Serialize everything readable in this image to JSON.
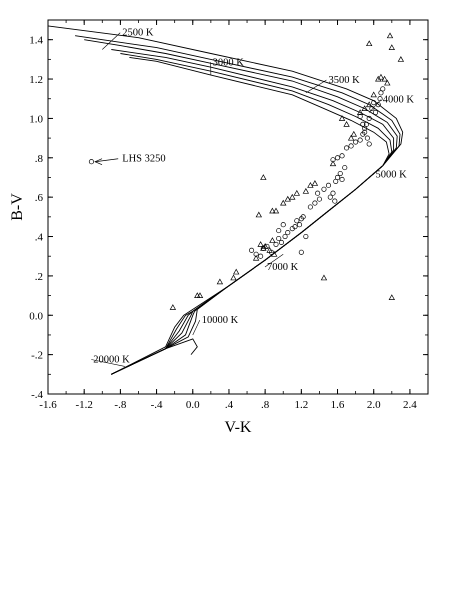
{
  "chart_data": {
    "type": "scatter",
    "title": "",
    "xlabel": "V-K",
    "ylabel": "B-V",
    "xlim": [
      -1.6,
      2.6
    ],
    "ylim": [
      -0.4,
      1.5
    ],
    "grid": false,
    "legend": "none",
    "x_ticks": [
      -1.6,
      -1.2,
      -0.8,
      -0.4,
      0.0,
      0.4,
      0.8,
      1.2,
      1.6,
      2.0,
      2.4
    ],
    "x_tick_labels": [
      "-1.6",
      "-1.2",
      "-.8",
      "-.4",
      "0.0",
      ".4",
      ".8",
      "1.2",
      "1.6",
      "2.0",
      "2.4"
    ],
    "y_ticks": [
      -0.4,
      -0.2,
      0.0,
      0.2,
      0.4,
      0.6,
      0.8,
      1.0,
      1.2,
      1.4
    ],
    "y_tick_labels": [
      "-.4",
      "-.2",
      "0.0",
      ".2",
      ".4",
      ".6",
      ".8",
      "1.0",
      "1.2",
      "1.4"
    ],
    "model_curves": [
      {
        "points": [
          [
            -0.9,
            -0.3
          ],
          [
            -0.3,
            -0.16
          ],
          [
            -0.2,
            -0.06
          ],
          [
            -0.1,
            0.0
          ],
          [
            0.0,
            0.03
          ],
          [
            0.4,
            0.15
          ],
          [
            0.8,
            0.28
          ],
          [
            1.2,
            0.42
          ],
          [
            1.5,
            0.53
          ],
          [
            1.8,
            0.64
          ],
          [
            2.1,
            0.76
          ],
          [
            2.3,
            0.87
          ],
          [
            2.32,
            0.93
          ],
          [
            2.25,
            1.0
          ],
          [
            2.0,
            1.09
          ],
          [
            1.7,
            1.15
          ],
          [
            1.1,
            1.24
          ],
          [
            0.2,
            1.33
          ],
          [
            -0.6,
            1.41
          ],
          [
            -1.6,
            1.47
          ]
        ]
      },
      {
        "points": [
          [
            -0.9,
            -0.3
          ],
          [
            -0.3,
            -0.17
          ],
          [
            -0.18,
            -0.07
          ],
          [
            -0.08,
            0.0
          ],
          [
            0.0,
            0.02
          ],
          [
            0.4,
            0.15
          ],
          [
            0.8,
            0.28
          ],
          [
            1.2,
            0.42
          ],
          [
            1.5,
            0.53
          ],
          [
            1.8,
            0.64
          ],
          [
            2.1,
            0.76
          ],
          [
            2.28,
            0.86
          ],
          [
            2.29,
            0.92
          ],
          [
            2.2,
            0.99
          ],
          [
            1.95,
            1.07
          ],
          [
            1.65,
            1.13
          ],
          [
            1.1,
            1.21
          ],
          [
            0.2,
            1.3
          ],
          [
            -0.4,
            1.36
          ],
          [
            -1.0,
            1.4
          ],
          [
            -1.3,
            1.42
          ]
        ]
      },
      {
        "points": [
          [
            -0.9,
            -0.3
          ],
          [
            -0.3,
            -0.17
          ],
          [
            -0.15,
            -0.08
          ],
          [
            -0.05,
            0.0
          ],
          [
            0.0,
            0.02
          ],
          [
            0.4,
            0.15
          ],
          [
            0.8,
            0.28
          ],
          [
            1.2,
            0.42
          ],
          [
            1.5,
            0.53
          ],
          [
            1.8,
            0.64
          ],
          [
            2.1,
            0.76
          ],
          [
            2.25,
            0.85
          ],
          [
            2.26,
            0.91
          ],
          [
            2.15,
            0.98
          ],
          [
            1.9,
            1.05
          ],
          [
            1.6,
            1.11
          ],
          [
            1.1,
            1.19
          ],
          [
            0.2,
            1.28
          ],
          [
            -0.3,
            1.33
          ],
          [
            -0.8,
            1.37
          ],
          [
            -1.2,
            1.4
          ]
        ]
      },
      {
        "points": [
          [
            -0.9,
            -0.3
          ],
          [
            -0.3,
            -0.17
          ],
          [
            -0.12,
            -0.09
          ],
          [
            -0.02,
            0.0
          ],
          [
            0.0,
            0.02
          ],
          [
            0.4,
            0.15
          ],
          [
            0.8,
            0.28
          ],
          [
            1.2,
            0.42
          ],
          [
            1.5,
            0.53
          ],
          [
            1.8,
            0.64
          ],
          [
            2.1,
            0.76
          ],
          [
            2.22,
            0.84
          ],
          [
            2.22,
            0.9
          ],
          [
            2.1,
            0.97
          ],
          [
            1.85,
            1.03
          ],
          [
            1.55,
            1.09
          ],
          [
            1.1,
            1.16
          ],
          [
            0.2,
            1.26
          ],
          [
            -0.3,
            1.31
          ],
          [
            -0.9,
            1.35
          ]
        ]
      },
      {
        "points": [
          [
            -0.9,
            -0.3
          ],
          [
            -0.3,
            -0.17
          ],
          [
            -0.08,
            -0.1
          ],
          [
            0.0,
            0.0
          ],
          [
            0.02,
            0.02
          ],
          [
            0.4,
            0.15
          ],
          [
            0.8,
            0.28
          ],
          [
            1.2,
            0.42
          ],
          [
            1.5,
            0.53
          ],
          [
            1.8,
            0.64
          ],
          [
            2.1,
            0.76
          ],
          [
            2.2,
            0.83
          ],
          [
            2.18,
            0.89
          ],
          [
            2.05,
            0.95
          ],
          [
            1.8,
            1.01
          ],
          [
            1.5,
            1.07
          ],
          [
            1.1,
            1.14
          ],
          [
            0.2,
            1.24
          ],
          [
            -0.4,
            1.3
          ],
          [
            -0.8,
            1.33
          ]
        ]
      },
      {
        "points": [
          [
            -0.9,
            -0.3
          ],
          [
            -0.3,
            -0.17
          ],
          [
            -0.05,
            -0.11
          ],
          [
            0.03,
            -0.03
          ],
          [
            0.05,
            0.03
          ],
          [
            0.4,
            0.15
          ],
          [
            0.8,
            0.28
          ],
          [
            1.2,
            0.42
          ],
          [
            1.5,
            0.53
          ],
          [
            1.8,
            0.64
          ],
          [
            2.1,
            0.76
          ],
          [
            2.17,
            0.82
          ],
          [
            2.14,
            0.88
          ],
          [
            2.0,
            0.93
          ],
          [
            1.75,
            0.99
          ],
          [
            1.45,
            1.05
          ],
          [
            1.1,
            1.12
          ],
          [
            0.2,
            1.22
          ],
          [
            -0.4,
            1.29
          ],
          [
            -0.7,
            1.31
          ]
        ]
      },
      {
        "points": [
          [
            -0.9,
            -0.3
          ],
          [
            -0.3,
            -0.17
          ],
          [
            0.0,
            -0.12
          ],
          [
            0.05,
            -0.16
          ],
          [
            -0.02,
            -0.2
          ]
        ]
      }
    ],
    "circles": [
      [
        0.65,
        0.33
      ],
      [
        0.7,
        0.31
      ],
      [
        0.75,
        0.3
      ],
      [
        0.78,
        0.34
      ],
      [
        0.82,
        0.35
      ],
      [
        0.87,
        0.32
      ],
      [
        0.92,
        0.36
      ],
      [
        0.95,
        0.39
      ],
      [
        0.98,
        0.37
      ],
      [
        1.02,
        0.4
      ],
      [
        1.05,
        0.42
      ],
      [
        1.1,
        0.44
      ],
      [
        1.13,
        0.45
      ],
      [
        1.15,
        0.48
      ],
      [
        1.18,
        0.46
      ],
      [
        1.2,
        0.49
      ],
      [
        1.22,
        0.5
      ],
      [
        0.95,
        0.43
      ],
      [
        1.0,
        0.46
      ],
      [
        1.3,
        0.55
      ],
      [
        1.35,
        0.57
      ],
      [
        1.38,
        0.62
      ],
      [
        1.4,
        0.59
      ],
      [
        1.45,
        0.64
      ],
      [
        1.5,
        0.66
      ],
      [
        1.55,
        0.62
      ],
      [
        1.58,
        0.68
      ],
      [
        1.6,
        0.7
      ],
      [
        1.63,
        0.72
      ],
      [
        1.65,
        0.69
      ],
      [
        1.68,
        0.75
      ],
      [
        1.52,
        0.6
      ],
      [
        1.57,
        0.58
      ],
      [
        1.55,
        0.79
      ],
      [
        1.6,
        0.8
      ],
      [
        1.65,
        0.81
      ],
      [
        1.7,
        0.85
      ],
      [
        1.75,
        0.86
      ],
      [
        1.8,
        0.88
      ],
      [
        1.85,
        0.89
      ],
      [
        1.88,
        0.92
      ],
      [
        1.9,
        0.95
      ],
      [
        1.92,
        0.97
      ],
      [
        1.95,
        1.0
      ],
      [
        1.98,
        1.05
      ],
      [
        2.0,
        1.08
      ],
      [
        2.02,
        1.03
      ],
      [
        2.05,
        1.07
      ],
      [
        2.07,
        1.1
      ],
      [
        2.08,
        1.13
      ],
      [
        2.1,
        1.15
      ],
      [
        1.85,
        1.01
      ],
      [
        1.88,
        0.97
      ],
      [
        1.9,
        0.93
      ],
      [
        1.93,
        0.9
      ],
      [
        1.95,
        0.87
      ],
      [
        1.2,
        0.32
      ],
      [
        1.25,
        0.4
      ],
      [
        -1.12,
        0.78
      ]
    ],
    "triangles": [
      [
        -0.22,
        0.04
      ],
      [
        0.05,
        0.1
      ],
      [
        0.08,
        0.1
      ],
      [
        0.3,
        0.17
      ],
      [
        0.45,
        0.19
      ],
      [
        0.48,
        0.22
      ],
      [
        0.7,
        0.29
      ],
      [
        0.75,
        0.36
      ],
      [
        0.78,
        0.34
      ],
      [
        0.8,
        0.35
      ],
      [
        0.85,
        0.33
      ],
      [
        0.88,
        0.38
      ],
      [
        0.9,
        0.31
      ],
      [
        0.73,
        0.51
      ],
      [
        0.88,
        0.53
      ],
      [
        0.92,
        0.53
      ],
      [
        0.78,
        0.7
      ],
      [
        1.0,
        0.57
      ],
      [
        1.05,
        0.59
      ],
      [
        1.1,
        0.6
      ],
      [
        1.15,
        0.62
      ],
      [
        1.25,
        0.63
      ],
      [
        1.3,
        0.66
      ],
      [
        1.35,
        0.67
      ],
      [
        1.45,
        0.19
      ],
      [
        1.55,
        0.77
      ],
      [
        1.65,
        1.0
      ],
      [
        1.7,
        0.97
      ],
      [
        1.75,
        0.9
      ],
      [
        1.78,
        0.92
      ],
      [
        1.85,
        1.03
      ],
      [
        1.9,
        1.05
      ],
      [
        1.95,
        1.07
      ],
      [
        2.0,
        1.12
      ],
      [
        2.05,
        1.2
      ],
      [
        2.08,
        1.21
      ],
      [
        2.12,
        1.2
      ],
      [
        2.15,
        1.18
      ],
      [
        2.18,
        1.42
      ],
      [
        2.2,
        1.36
      ],
      [
        2.3,
        1.3
      ],
      [
        1.95,
        1.38
      ],
      [
        2.2,
        0.09
      ]
    ],
    "annotations": [
      {
        "text": "2500 K",
        "x": -0.78,
        "y": 1.42,
        "line_to": [
          -1.0,
          1.35
        ]
      },
      {
        "text": "3000 K",
        "x": 0.22,
        "y": 1.27,
        "line_to": [
          0.2,
          1.22
        ]
      },
      {
        "text": "3500 K",
        "x": 1.5,
        "y": 1.18,
        "line_to": [
          1.25,
          1.13
        ]
      },
      {
        "text": "4000 K",
        "x": 2.1,
        "y": 1.08,
        "line_to": [
          1.95,
          1.03
        ]
      },
      {
        "text": "5000 K",
        "x": 2.02,
        "y": 0.7,
        "line_to": [
          2.0,
          0.72
        ]
      },
      {
        "text": "7000 K",
        "x": 0.82,
        "y": 0.23,
        "line_to": [
          1.0,
          0.31
        ]
      },
      {
        "text": "10000 K",
        "x": 0.1,
        "y": -0.04,
        "line_to": [
          0.0,
          -0.1
        ]
      },
      {
        "text": "20000 K",
        "x": -1.1,
        "y": -0.24,
        "line_to": [
          -0.75,
          -0.26
        ]
      },
      {
        "text": "LHS 3250",
        "x": -0.78,
        "y": 0.78,
        "arrow_to": [
          -1.08,
          0.78
        ]
      }
    ]
  }
}
